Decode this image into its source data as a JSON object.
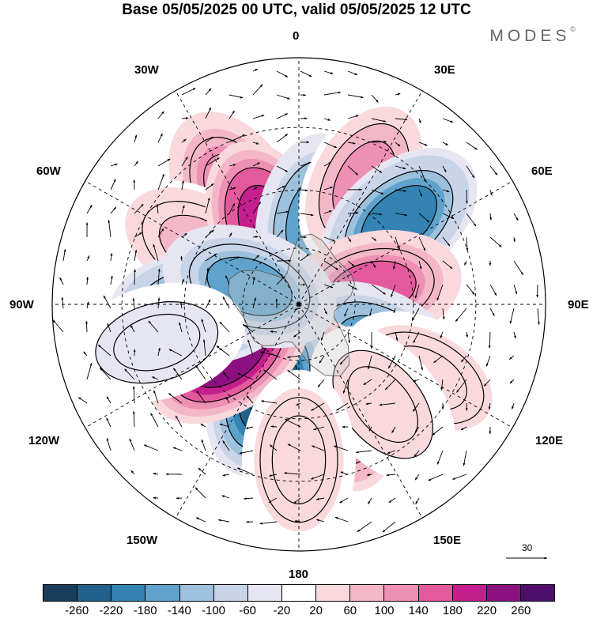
{
  "title": "Base 05/05/2025 00 UTC, valid 05/05/2025 12 UTC",
  "brand": {
    "name": "MODES",
    "mark": "©"
  },
  "longitude_labels": {
    "top": "0",
    "bottom": "180",
    "left": "90W",
    "right": "90E",
    "upper_left_1": "30W",
    "upper_left_2": "60W",
    "upper_right_1": "30E",
    "upper_right_2": "60E",
    "lower_left_1": "120W",
    "lower_left_2": "150W",
    "lower_right_1": "120E",
    "lower_right_2": "150E"
  },
  "reference_vector": {
    "value": "30"
  },
  "colorbar": {
    "colors": [
      "#1a3d5c",
      "#21608a",
      "#3383b3",
      "#5fa3cc",
      "#9ec1dd",
      "#c8d4e8",
      "#e6e6f3",
      "#ffffff",
      "#f9d9dc",
      "#f3b7c8",
      "#ee8fb4",
      "#e3599e",
      "#c51f8d",
      "#8c1180",
      "#4f0e6b"
    ],
    "tick_labels": [
      "-260",
      "-220",
      "-180",
      "-140",
      "-100",
      "-60",
      "-20",
      "20",
      "60",
      "100",
      "140",
      "180",
      "220",
      "260"
    ]
  },
  "field_anomalies": [
    {
      "lon": 330,
      "colat": 33,
      "level": 160,
      "name": "trough-30w"
    },
    {
      "lon": 305,
      "colat": 18,
      "level": -150,
      "name": "ridge-55w"
    },
    {
      "lon": 300,
      "colat": 30,
      "level": 70,
      "name": "ridge-60w"
    },
    {
      "lon": 338,
      "colat": 22,
      "level": 250,
      "name": "high-20w"
    },
    {
      "lon": 10,
      "colat": 22,
      "level": -180,
      "name": "low-10e"
    },
    {
      "lon": 28,
      "colat": 36,
      "level": 120,
      "name": "high-30e"
    },
    {
      "lon": 50,
      "colat": 34,
      "level": -220,
      "name": "low-50e"
    },
    {
      "lon": 78,
      "colat": 20,
      "level": 170,
      "name": "high-80e"
    },
    {
      "lon": 118,
      "colat": 24,
      "level": -180,
      "name": "low-120e"
    },
    {
      "lon": 160,
      "colat": 28,
      "level": 220,
      "name": "high-160e"
    },
    {
      "lon": 200,
      "colat": 24,
      "level": -280,
      "name": "low-160w"
    },
    {
      "lon": 235,
      "colat": 23,
      "level": 260,
      "name": "high-125w"
    },
    {
      "lon": 268,
      "colat": 26,
      "level": -220,
      "name": "low-95w"
    },
    {
      "lon": 290,
      "colat": 14,
      "level": -170,
      "name": "low-70w"
    },
    {
      "lon": 120,
      "colat": 38,
      "level": 60,
      "name": "high-120e-outer"
    },
    {
      "lon": 140,
      "colat": 34,
      "level": 40,
      "name": "high-140e"
    },
    {
      "lon": 180,
      "colat": 40,
      "level": 50,
      "name": "high-180"
    },
    {
      "lon": 255,
      "colat": 38,
      "level": -40,
      "name": "low-105w"
    }
  ],
  "continent_outlines": "Antarctica and southern landmasses"
}
